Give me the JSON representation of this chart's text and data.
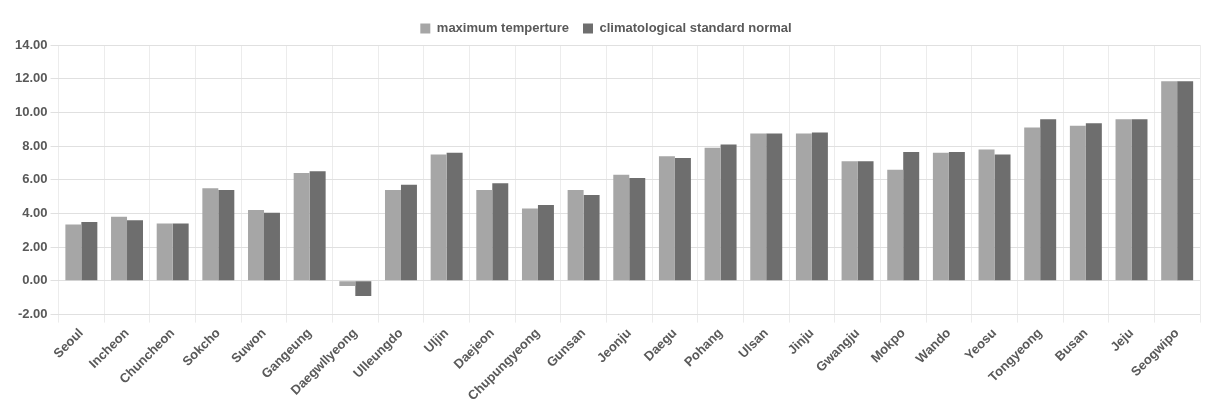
{
  "chart_data": {
    "type": "bar",
    "categories": [
      "Seoul",
      "Incheon",
      "Chuncheon",
      "Sokcho",
      "Suwon",
      "Gangeung",
      "Daegwllyeong",
      "Ulleungdo",
      "Uljin",
      "Daejeon",
      "Chupungyeong",
      "Gunsan",
      "Jeonju",
      "Daegu",
      "Pohang",
      "Ulsan",
      "Jinju",
      "Gwangju",
      "Mokpo",
      "Wando",
      "Yeosu",
      "Tongyeong",
      "Busan",
      "Jeju",
      "Seogwipo"
    ],
    "series": [
      {
        "name": "maximum temperture",
        "color": "#a6a6a6",
        "values": [
          3.35,
          3.8,
          3.4,
          5.5,
          4.2,
          6.4,
          -0.3,
          5.4,
          7.5,
          5.4,
          4.3,
          5.4,
          6.3,
          7.4,
          7.9,
          8.75,
          8.75,
          7.1,
          6.6,
          7.6,
          7.8,
          9.1,
          9.2,
          9.6,
          11.85
        ]
      },
      {
        "name": "climatological standard normal",
        "color": "#6e6e6e",
        "values": [
          3.5,
          3.6,
          3.4,
          5.4,
          4.05,
          6.5,
          -0.9,
          5.7,
          7.6,
          5.8,
          4.5,
          5.1,
          6.1,
          7.3,
          8.1,
          8.75,
          8.8,
          7.1,
          7.65,
          7.65,
          7.5,
          9.6,
          9.35,
          9.6,
          11.85
        ]
      }
    ],
    "ylim": [
      -2,
      14
    ],
    "yticks": [
      {
        "value": -2,
        "label": "-2.00"
      },
      {
        "value": 0,
        "label": "0.00"
      },
      {
        "value": 2,
        "label": "2.00"
      },
      {
        "value": 4,
        "label": "4.00"
      },
      {
        "value": 6,
        "label": "6.00"
      },
      {
        "value": 8,
        "label": "8.00"
      },
      {
        "value": 10,
        "label": "10.00"
      },
      {
        "value": 12,
        "label": "12.00"
      },
      {
        "value": 14,
        "label": "14.00"
      }
    ],
    "grid": true,
    "legend": "top"
  }
}
